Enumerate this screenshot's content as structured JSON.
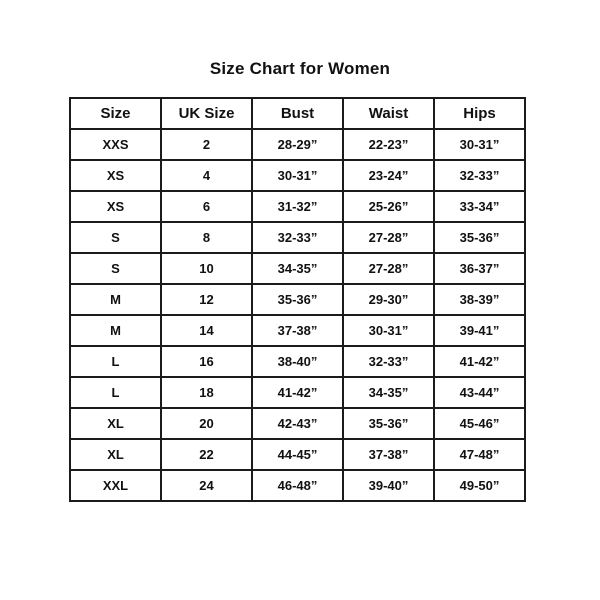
{
  "title": "Size Chart for Women",
  "colors": {
    "background": "#ffffff",
    "border": "#1b1b1b",
    "text": "#111111"
  },
  "chart_data": {
    "type": "table",
    "title": "Size Chart for Women",
    "columns": [
      "Size",
      "UK Size",
      "Bust",
      "Waist",
      "Hips"
    ],
    "rows": [
      [
        "XXS",
        "2",
        "28-29”",
        "22-23”",
        "30-31”"
      ],
      [
        "XS",
        "4",
        "30-31”",
        "23-24”",
        "32-33”"
      ],
      [
        "XS",
        "6",
        "31-32”",
        "25-26”",
        "33-34”"
      ],
      [
        "S",
        "8",
        "32-33”",
        "27-28”",
        "35-36”"
      ],
      [
        "S",
        "10",
        "34-35”",
        "27-28”",
        "36-37”"
      ],
      [
        "M",
        "12",
        "35-36”",
        "29-30”",
        "38-39”"
      ],
      [
        "M",
        "14",
        "37-38”",
        "30-31”",
        "39-41”"
      ],
      [
        "L",
        "16",
        "38-40”",
        "32-33”",
        "41-42”"
      ],
      [
        "L",
        "18",
        "41-42”",
        "34-35”",
        "43-44”"
      ],
      [
        "XL",
        "20",
        "42-43”",
        "35-36”",
        "45-46”"
      ],
      [
        "XL",
        "22",
        "44-45”",
        "37-38”",
        "47-48”"
      ],
      [
        "XXL",
        "24",
        "46-48”",
        "39-40”",
        "49-50”"
      ]
    ]
  }
}
